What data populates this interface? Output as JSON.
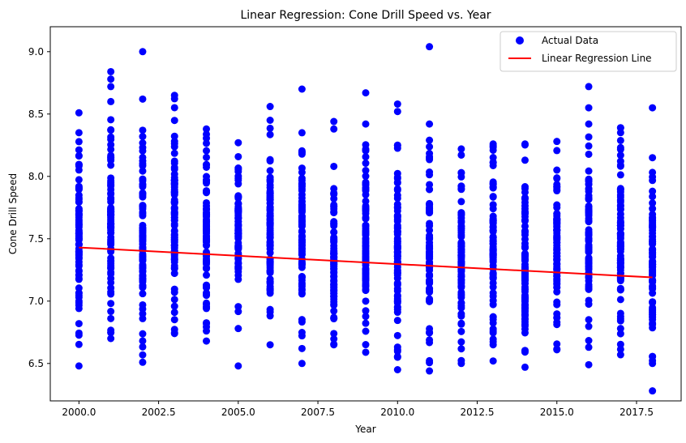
{
  "chart_data": {
    "type": "scatter",
    "title": "Linear Regression: Cone Drill Speed vs. Year",
    "xlabel": "Year",
    "ylabel": "Cone Drill Speed",
    "xlim": [
      1999.1,
      2018.9
    ],
    "ylim": [
      6.2,
      9.2
    ],
    "xticks": [
      2000.0,
      2002.5,
      2005.0,
      2007.5,
      2010.0,
      2012.5,
      2015.0,
      2017.5
    ],
    "xtick_labels": [
      "2000.0",
      "2002.5",
      "2005.0",
      "2007.5",
      "2010.0",
      "2012.5",
      "2015.0",
      "2017.5"
    ],
    "yticks": [
      6.5,
      7.0,
      7.5,
      8.0,
      8.5,
      9.0
    ],
    "ytick_labels": [
      "6.5",
      "7.0",
      "7.5",
      "8.0",
      "8.5",
      "9.0"
    ],
    "grid": false,
    "legend_position": "top-right",
    "colors": {
      "scatter": "#0000ff",
      "regression": "#ff0000"
    },
    "series": [
      {
        "name": "Actual Data",
        "kind": "scatter",
        "groups": [
          {
            "x": 2000,
            "min": 6.48,
            "max": 8.51,
            "extra": []
          },
          {
            "x": 2001,
            "min": 6.7,
            "max": 8.6,
            "extra": [
              8.84,
              8.78,
              8.72
            ]
          },
          {
            "x": 2002,
            "min": 6.51,
            "max": 8.37,
            "extra": [
              9.0,
              8.62
            ]
          },
          {
            "x": 2003,
            "min": 6.74,
            "max": 8.65,
            "extra": []
          },
          {
            "x": 2004,
            "min": 6.68,
            "max": 8.38,
            "extra": []
          },
          {
            "x": 2005,
            "min": 6.78,
            "max": 8.27,
            "extra": [
              6.48
            ]
          },
          {
            "x": 2006,
            "min": 6.65,
            "max": 8.45,
            "extra": [
              8.56
            ]
          },
          {
            "x": 2007,
            "min": 6.62,
            "max": 8.35,
            "extra": [
              8.7,
              6.5
            ]
          },
          {
            "x": 2008,
            "min": 6.65,
            "max": 8.08,
            "extra": [
              8.44,
              8.38
            ]
          },
          {
            "x": 2009,
            "min": 6.59,
            "max": 8.42,
            "extra": [
              8.67
            ]
          },
          {
            "x": 2010,
            "min": 6.55,
            "max": 8.25,
            "extra": [
              8.58,
              8.52,
              6.45
            ]
          },
          {
            "x": 2011,
            "min": 6.44,
            "max": 8.29,
            "extra": [
              9.04,
              8.42
            ]
          },
          {
            "x": 2012,
            "min": 6.5,
            "max": 8.22,
            "extra": []
          },
          {
            "x": 2013,
            "min": 6.65,
            "max": 8.26,
            "extra": [
              6.52
            ]
          },
          {
            "x": 2014,
            "min": 6.47,
            "max": 8.26,
            "extra": []
          },
          {
            "x": 2015,
            "min": 6.61,
            "max": 8.28,
            "extra": []
          },
          {
            "x": 2016,
            "min": 6.63,
            "max": 8.42,
            "extra": [
              8.72,
              8.55,
              6.49
            ]
          },
          {
            "x": 2017,
            "min": 6.57,
            "max": 8.39,
            "extra": []
          },
          {
            "x": 2018,
            "min": 6.5,
            "max": 8.15,
            "extra": [
              8.55,
              6.28
            ]
          }
        ]
      },
      {
        "name": "Linear Regression Line",
        "kind": "line",
        "x": [
          2000,
          2018
        ],
        "y": [
          7.43,
          7.19
        ]
      }
    ]
  }
}
